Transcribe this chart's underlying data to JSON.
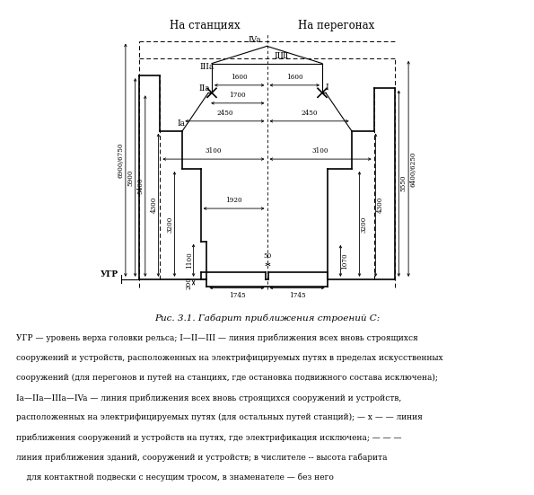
{
  "title": "Рис. 3.1. Габарит приближения строений С:",
  "header_left": "На станциях",
  "header_right": "На перегонах",
  "ugr_label": "УГР",
  "description_lines": [
    "УГР — уровень верха головки рельса; I—II—III — линия приближения всех вновь строящихся",
    "сооружений и устройств, расположенных на электрифицируемых путях в пределах искусственных",
    "сооружений (для перегонов и путей на станциях, где остановка подвижного состава исключена);",
    "Ia—IIa—IIIa—IVa — линия приближения всех вновь строящихся сооружений и устройств,",
    "расположенных на электрифицируемых путях (для остальных путей станций); — х — — линия",
    "приближения сооружений и устройств на путях, где электрификация исключена; — — —",
    "линия приближения зданий, сооружений и устройств; в числителе -- высота габарита",
    "    для контактной подвески с несущим тросом, в знаменателе — без него"
  ]
}
